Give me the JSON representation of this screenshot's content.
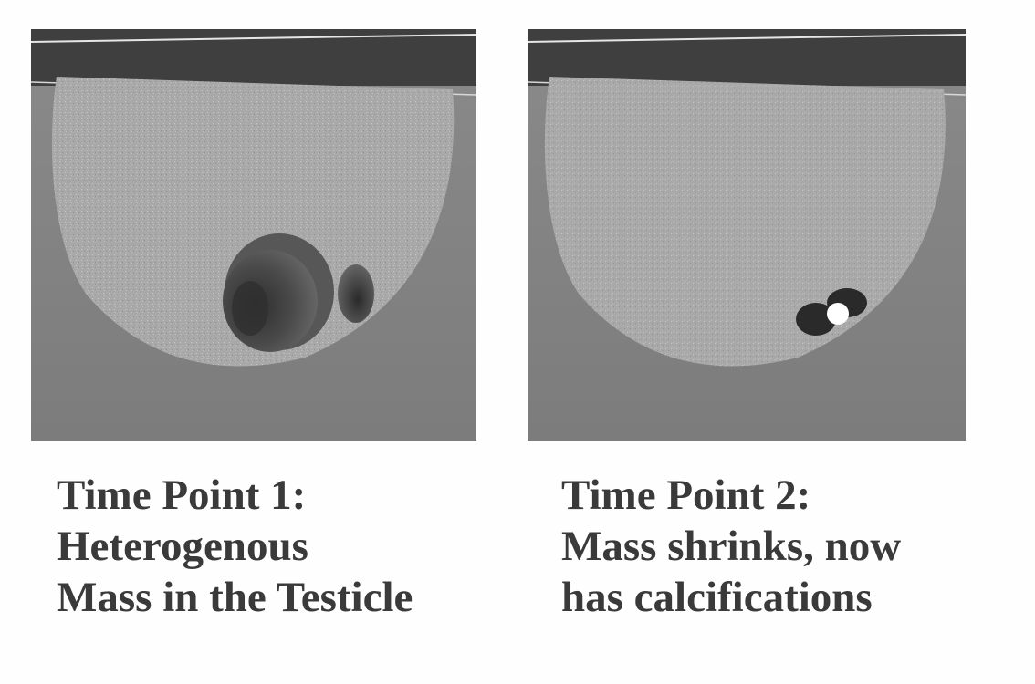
{
  "figure": {
    "panels": [
      {
        "id": "time-point-1",
        "caption_lines": [
          "Time Point 1:",
          "Heterogenous",
          "Mass in the Testicle"
        ]
      },
      {
        "id": "time-point-2",
        "caption_lines": [
          "Time Point 2:",
          "Mass shrinks, now",
          "has calcifications"
        ]
      }
    ]
  },
  "colors": {
    "background": "#fefefe",
    "scan_background": "#7a7a7a",
    "testicle_tissue": "#a8a8a8",
    "mass_dark": "#3c3c3c",
    "calcification": "#ffffff",
    "caption_text": "#3a3a3a"
  }
}
